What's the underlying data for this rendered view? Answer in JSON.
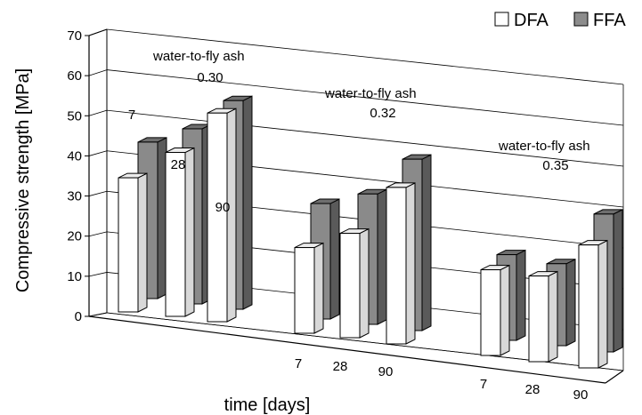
{
  "chart_data": {
    "type": "bar",
    "style": "3d-clustered",
    "xlabel": "time [days]",
    "ylabel": "Compressive strength [MPa]",
    "ylim": [
      0,
      70
    ],
    "yticks": [
      0,
      10,
      20,
      30,
      40,
      50,
      60,
      70
    ],
    "grid": true,
    "legend_position": "top-right",
    "groups": [
      {
        "annotation_line1": "water-to-fly ash",
        "annotation_line2": "0.30",
        "categories": [
          "7",
          "28",
          "90"
        ],
        "series": [
          {
            "name": "DFA",
            "values": [
              36,
              44,
              56
            ]
          },
          {
            "name": "FFA",
            "values": [
              42,
              47,
              56
            ]
          }
        ]
      },
      {
        "annotation_line1": "water-to-fly ash",
        "annotation_line2": "0.32",
        "categories": [
          "7",
          "28",
          "90"
        ],
        "series": [
          {
            "name": "DFA",
            "values": [
              23,
              28,
              42
            ]
          },
          {
            "name": "FFA",
            "values": [
              31,
              35,
              46
            ]
          }
        ]
      },
      {
        "annotation_line1": "water-to-fly ash",
        "annotation_line2": "0.35",
        "categories": [
          "7",
          "28",
          "90"
        ],
        "series": [
          {
            "name": "DFA",
            "values": [
              23,
              23,
              33
            ]
          },
          {
            "name": "FFA",
            "values": [
              23,
              22,
              37
            ]
          }
        ]
      }
    ],
    "legend": [
      {
        "name": "DFA",
        "color": "#ffffff"
      },
      {
        "name": "FFA",
        "color": "#8c8c8c"
      }
    ]
  }
}
